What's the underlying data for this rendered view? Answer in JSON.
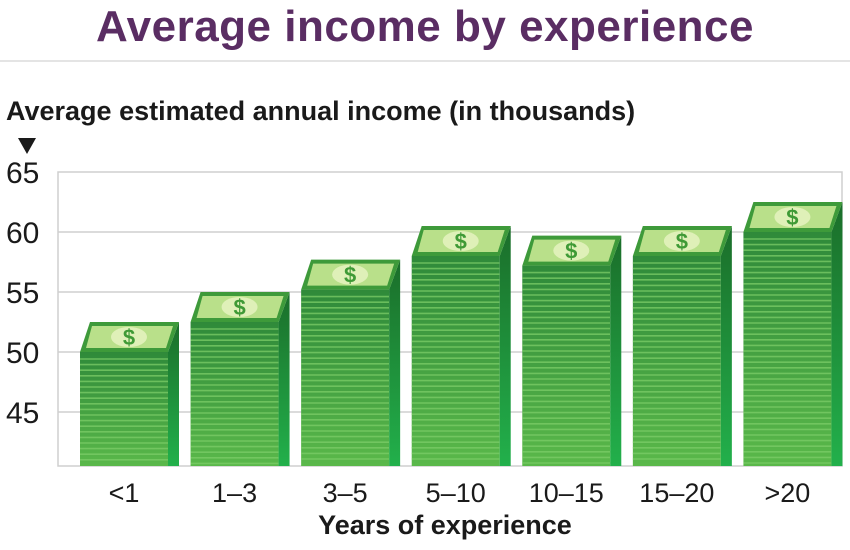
{
  "title": "Average income by experience",
  "chart_data": {
    "type": "bar",
    "title": "Average income by experience",
    "ylabel": "Average estimated annual income (in thousands)",
    "xlabel": "Years of experience",
    "categories": [
      "<1",
      "1–3",
      "3–5",
      "5–10",
      "10–15",
      "15–20",
      ">20"
    ],
    "values": [
      50,
      52.5,
      55.2,
      58,
      57.2,
      58,
      60
    ],
    "yticks": [
      45,
      50,
      55,
      60,
      65
    ],
    "ylim": [
      40.5,
      65
    ],
    "grid": true,
    "bar_symbol": "$"
  }
}
